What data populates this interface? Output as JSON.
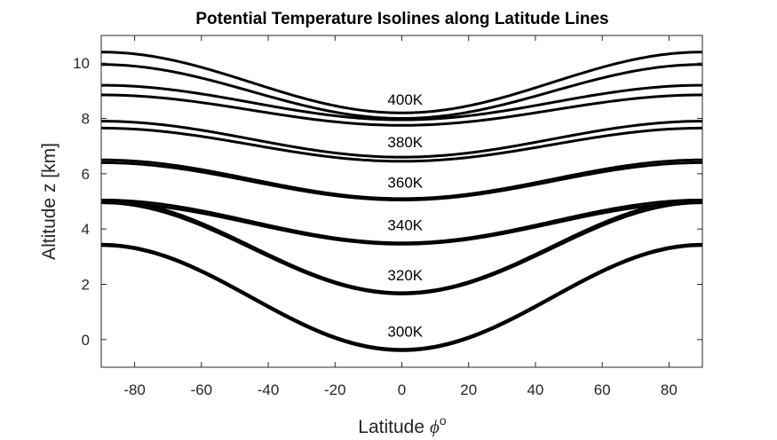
{
  "chart_data": {
    "type": "line",
    "title": "Potential Temperature Isolines along Latitude Lines",
    "xlabel": "Latitude",
    "xlabel_symbol": "ϕ",
    "xlabel_superscript": "o",
    "ylabel": "Altitude z [km]",
    "xlim": [
      -90,
      90
    ],
    "ylim": [
      -1,
      11
    ],
    "xticks": [
      -80,
      -60,
      -40,
      -20,
      0,
      20,
      40,
      60,
      80
    ],
    "yticks": [
      0,
      2,
      4,
      6,
      8,
      10
    ],
    "grid": false,
    "line_color": "#000000",
    "series": [
      {
        "name": "300K",
        "x": [
          -90,
          0,
          90
        ],
        "y": [
          3.45,
          -0.35,
          3.45
        ]
      },
      {
        "name": "",
        "x": [
          -90,
          0,
          90
        ],
        "y": [
          3.4,
          -0.4,
          3.4
        ]
      },
      {
        "name": "320K",
        "x": [
          -90,
          0,
          90
        ],
        "y": [
          5.05,
          1.7,
          5.05
        ]
      },
      {
        "name": "",
        "x": [
          -90,
          0,
          90
        ],
        "y": [
          4.95,
          1.65,
          4.95
        ]
      },
      {
        "name": "340K",
        "x": [
          -90,
          0,
          90
        ],
        "y": [
          5.05,
          3.5,
          5.05
        ]
      },
      {
        "name": "",
        "x": [
          -90,
          0,
          90
        ],
        "y": [
          4.95,
          3.45,
          4.95
        ]
      },
      {
        "name": "360K",
        "x": [
          -90,
          0,
          90
        ],
        "y": [
          6.5,
          5.1,
          6.5
        ]
      },
      {
        "name": "",
        "x": [
          -90,
          0,
          90
        ],
        "y": [
          6.4,
          5.05,
          6.4
        ]
      },
      {
        "name": "380K",
        "x": [
          -90,
          0,
          90
        ],
        "y": [
          7.9,
          6.6,
          7.9
        ]
      },
      {
        "name": "",
        "x": [
          -90,
          0,
          90
        ],
        "y": [
          7.65,
          6.45,
          7.65
        ]
      },
      {
        "name": "",
        "x": [
          -90,
          0,
          90
        ],
        "y": [
          9.2,
          7.95,
          9.2
        ]
      },
      {
        "name": "400K",
        "x": [
          -90,
          0,
          90
        ],
        "y": [
          8.85,
          7.75,
          8.85
        ]
      },
      {
        "name": "",
        "x": [
          -90,
          0,
          90
        ],
        "y": [
          10.4,
          8.2,
          10.4
        ]
      },
      {
        "name": "",
        "x": [
          -90,
          0,
          90
        ],
        "y": [
          9.95,
          8.0,
          9.95
        ]
      }
    ],
    "annotations": [
      {
        "text": "300K",
        "x": 1,
        "y": 0.1
      },
      {
        "text": "320K",
        "x": 1,
        "y": 2.15
      },
      {
        "text": "340K",
        "x": 1,
        "y": 3.95
      },
      {
        "text": "360K",
        "x": 1,
        "y": 5.5
      },
      {
        "text": "380K",
        "x": 1,
        "y": 6.95
      },
      {
        "text": "400K",
        "x": 1,
        "y": 8.5
      }
    ]
  }
}
